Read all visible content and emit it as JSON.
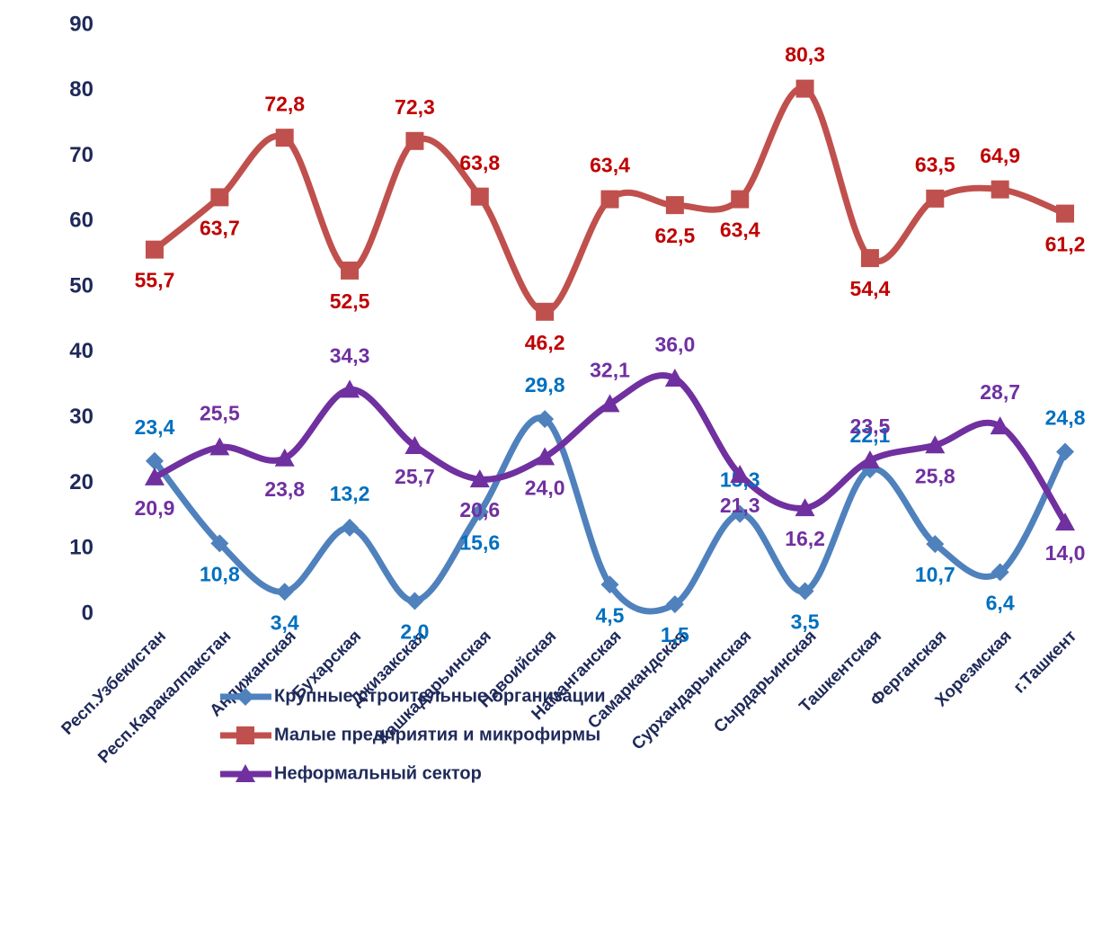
{
  "chart_data": {
    "type": "line",
    "categories": [
      "Респ.Узбекистан",
      "Респ.Каракалпакстан",
      "Андижанская",
      "Бухарская",
      "Джизакская",
      "Кашкадарьинская",
      "Навоийская",
      "Наманганская",
      "Самаркандская",
      "Сурхандарьинская",
      "Сырдарьинская",
      "Ташкентская",
      "Ферганская",
      "Хорезмская",
      "г.Ташкент"
    ],
    "series": [
      {
        "name": "Крупные строительные организации",
        "color": "#4f81bd",
        "label_color": "#0070c0",
        "marker": "diamond",
        "values": [
          23.4,
          10.8,
          3.4,
          13.2,
          2.0,
          15.6,
          29.8,
          4.5,
          1.5,
          15.3,
          3.5,
          22.1,
          10.7,
          6.4,
          24.8
        ],
        "value_labels": [
          "23,4",
          "10,8",
          "3,4",
          "13,2",
          "2,0",
          "15,6",
          "29,8",
          "4,5",
          "1,5",
          "15,3",
          "3,5",
          "22,1",
          "10,7",
          "6,4",
          "24,8"
        ]
      },
      {
        "name": "Малые предприятия и микрофирмы",
        "color": "#c0504d",
        "label_color": "#c00000",
        "marker": "square",
        "values": [
          55.7,
          63.7,
          72.8,
          52.5,
          72.3,
          63.8,
          46.2,
          63.4,
          62.5,
          63.4,
          80.3,
          54.4,
          63.5,
          64.9,
          61.2
        ],
        "value_labels": [
          "55,7",
          "63,7",
          "72,8",
          "52,5",
          "72,3",
          "63,8",
          "46,2",
          "63,4",
          "62,5",
          "63,4",
          "80,3",
          "54,4",
          "63,5",
          "64,9",
          "61,2"
        ]
      },
      {
        "name": "Неформальный сектор",
        "color": "#7030a0",
        "label_color": "#7030a0",
        "marker": "triangle",
        "values": [
          20.9,
          25.5,
          23.8,
          34.3,
          25.7,
          20.6,
          24.0,
          32.1,
          36.0,
          21.3,
          16.2,
          23.5,
          25.8,
          28.7,
          14.0
        ],
        "value_labels": [
          "20,9",
          "25,5",
          "23,8",
          "34,3",
          "25,7",
          "20,6",
          "24,0",
          "32,1",
          "36,0",
          "21,3",
          "16,2",
          "23,5",
          "25,8",
          "28,7",
          "14,0"
        ]
      }
    ],
    "ylim": [
      0,
      90
    ],
    "yticks": [
      0,
      10,
      20,
      30,
      40,
      50,
      60,
      70,
      80,
      90
    ],
    "grid": false,
    "legend": "bottom"
  }
}
